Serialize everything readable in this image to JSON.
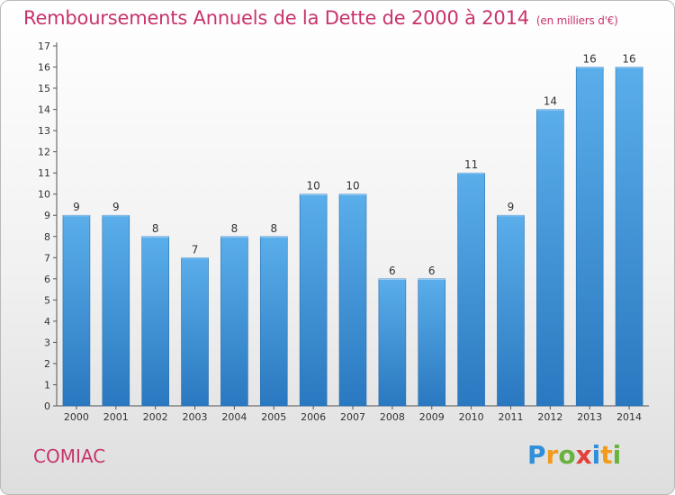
{
  "title": "Remboursements Annuels de la Dette de 2000 à 2014",
  "subtitle": "(en milliers d'€)",
  "commune": "COMIAC",
  "logo": {
    "text": "Proxiti",
    "letters": [
      "P",
      "r",
      "o",
      "x",
      "i",
      "t",
      "i"
    ]
  },
  "chart_data": {
    "type": "bar",
    "title": "Remboursements Annuels de la Dette de 2000 à 2014",
    "subtitle": "(en milliers d'€)",
    "categories": [
      "2000",
      "2001",
      "2002",
      "2003",
      "2004",
      "2005",
      "2006",
      "2007",
      "2008",
      "2009",
      "2010",
      "2011",
      "2012",
      "2013",
      "2014"
    ],
    "values": [
      9,
      9,
      8,
      7,
      8,
      8,
      10,
      10,
      6,
      6,
      11,
      9,
      14,
      16,
      16
    ],
    "ylim": [
      0,
      17
    ],
    "yticks": [
      "0",
      "1",
      "2",
      "3",
      "4",
      "5",
      "6",
      "7",
      "8",
      "9",
      "10",
      "11",
      "12",
      "13",
      "14",
      "15",
      "16",
      "17"
    ],
    "grid": false,
    "bar_color": "#4d9fe0",
    "bar_color_dark": "#2a78c0"
  }
}
